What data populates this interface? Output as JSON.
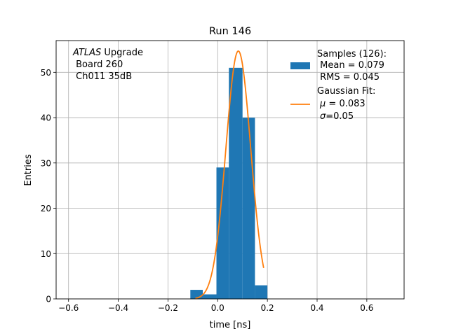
{
  "chart_data": {
    "type": "bar",
    "title": "Run 146",
    "xlabel": "time [ns]",
    "ylabel": "Entries",
    "xlim": [
      -0.65,
      0.75
    ],
    "ylim": [
      0,
      57
    ],
    "xticks": [
      -0.6,
      -0.4,
      -0.2,
      0.0,
      0.2,
      0.4,
      0.6
    ],
    "xtick_labels": [
      "−0.6",
      "−0.4",
      "−0.2",
      "0.0",
      "0.2",
      "0.4",
      "0.6"
    ],
    "yticks": [
      0,
      10,
      20,
      30,
      40,
      50
    ],
    "ytick_labels": [
      "0",
      "10",
      "20",
      "30",
      "40",
      "50"
    ],
    "grid": true,
    "annotation": {
      "italic": "ATLAS",
      "line1_rest": " Upgrade",
      "line2": " Board 260",
      "line3": " Ch011 35dB"
    },
    "histogram": {
      "name": "Samples (126):",
      "color": "#1f77b4",
      "bin_edges": [
        -0.11,
        -0.06,
        -0.005,
        0.045,
        0.1,
        0.15,
        0.2
      ],
      "counts": [
        2,
        1,
        29,
        51,
        40,
        3
      ]
    },
    "fit": {
      "name": "Gaussian Fit:",
      "color": "#ff7f0e",
      "mu": 0.083,
      "sigma": 0.05,
      "amplitude": 54.7,
      "x_range": [
        -0.09,
        0.185
      ]
    },
    "legend": {
      "placement": "top-right",
      "samples_title": "Samples (126):",
      "samples_mean": " Mean = 0.079",
      "samples_rms": " RMS = 0.045",
      "fit_title": "Gaussian Fit:",
      "fit_mu_symbol": "μ",
      "fit_mu_value": " = 0.083",
      "fit_sigma_symbol": "σ",
      "fit_sigma_value": "=0.05"
    }
  }
}
